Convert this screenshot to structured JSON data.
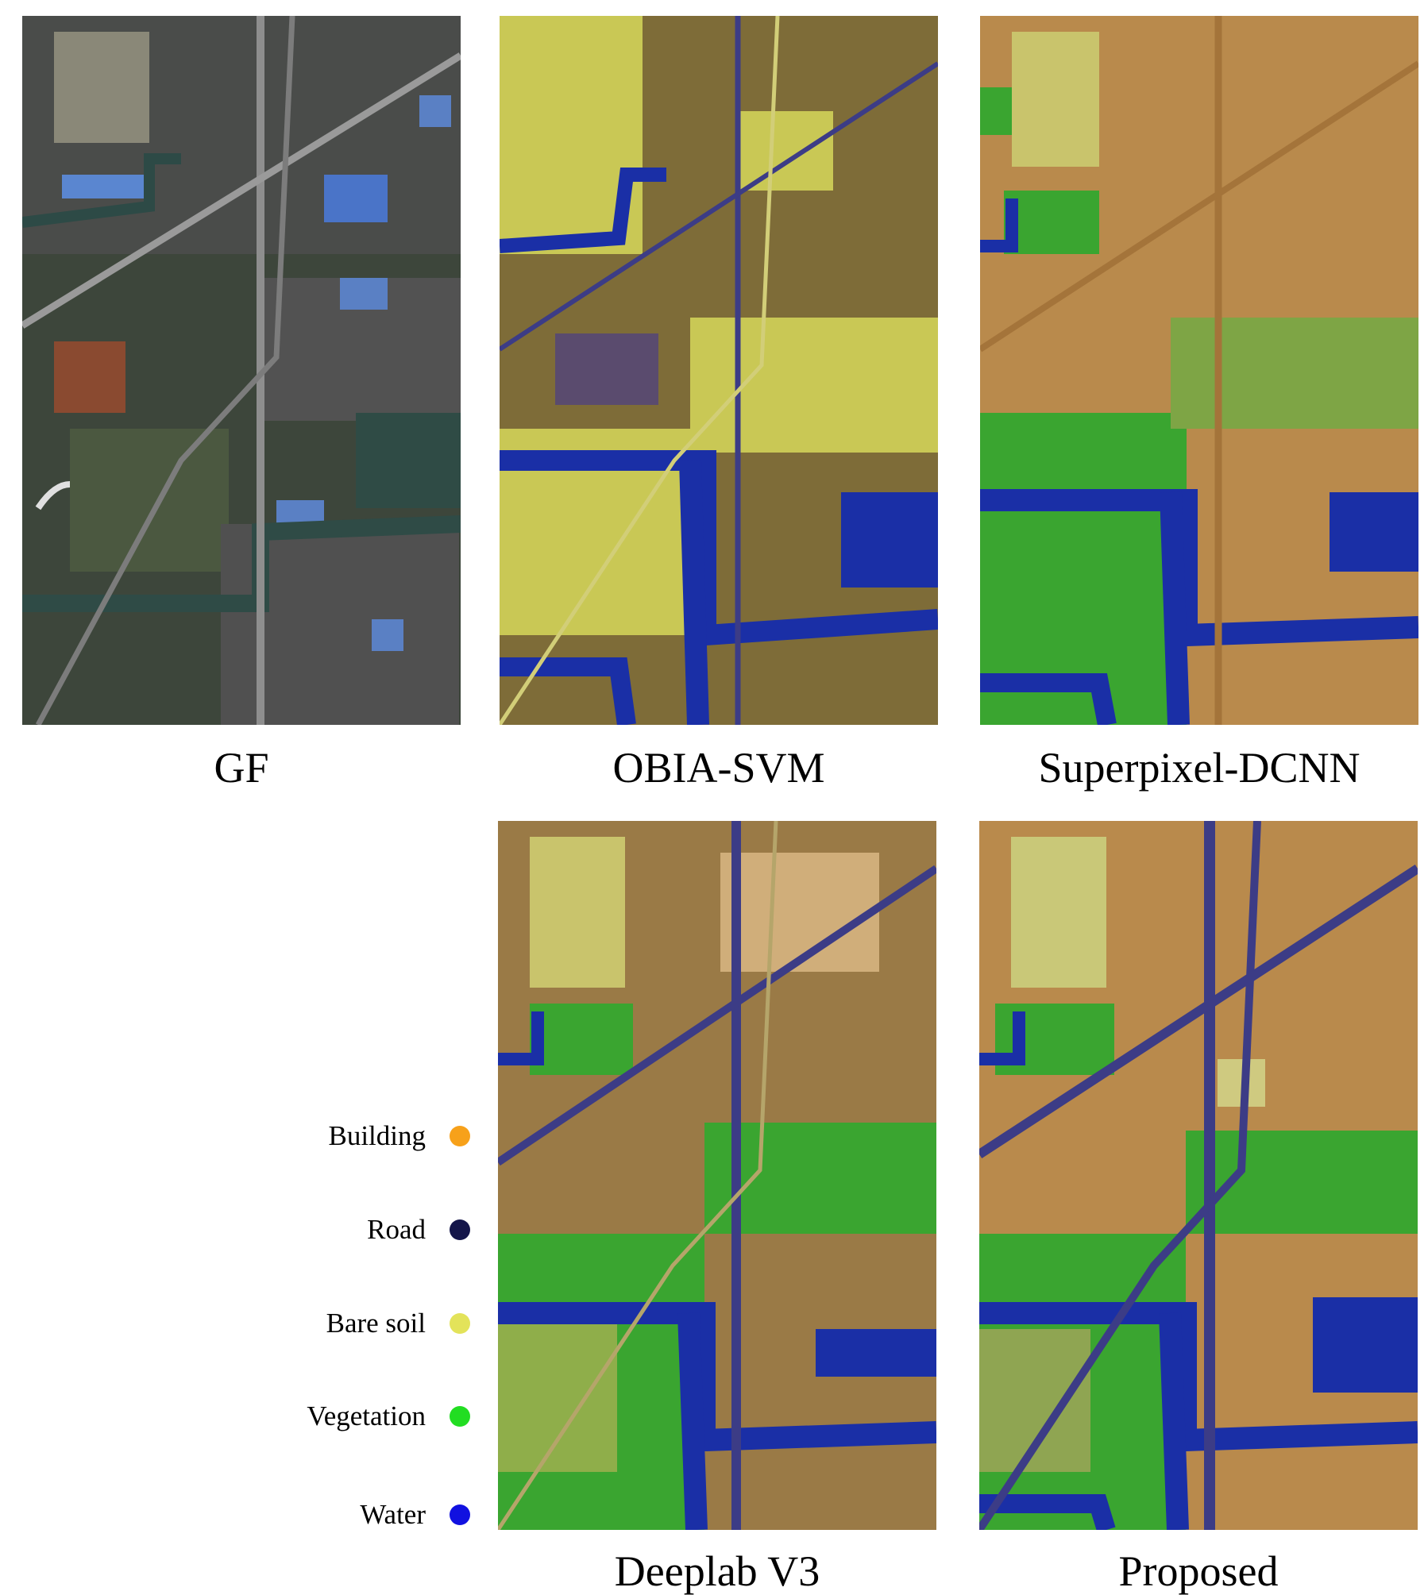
{
  "panels": {
    "gf": {
      "caption": "GF"
    },
    "obia_svm": {
      "caption": "OBIA-SVM"
    },
    "superpixel_dcnn": {
      "caption": "Superpixel-DCNN"
    },
    "deeplab_v3": {
      "caption": "Deeplab V3"
    },
    "proposed": {
      "caption": "Proposed"
    }
  },
  "legend": [
    {
      "label": "Building",
      "color": "#f7a11a"
    },
    {
      "label": "Road",
      "color": "#14164a"
    },
    {
      "label": "Bare soil",
      "color": "#e3e35a"
    },
    {
      "label": "Vegetation",
      "color": "#22dd22"
    },
    {
      "label": "Water",
      "color": "#1111e0"
    }
  ],
  "colors": {
    "building_overlay": "#b98a4c",
    "road_overlay": "#3c3c86",
    "bare_soil_overlay": "#c9c855",
    "vegetation_overlay": "#3aa530",
    "water_overlay": "#1a2fa6",
    "gf_base": "#3e4a3c",
    "gf_roof_blue": "#5276c0"
  }
}
